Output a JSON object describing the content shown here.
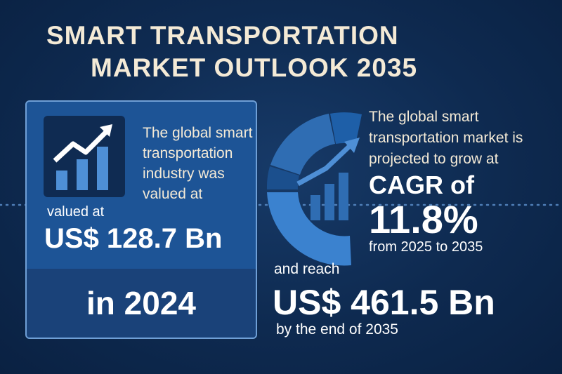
{
  "header": {
    "title_lines": [
      "SMART TRANSPORTATION",
      "MARKET OUTLOOK 2035"
    ]
  },
  "left_card": {
    "description": "The global smart transportation industry was valued at",
    "label": "valued at",
    "value": "US$ 128.7 Bn",
    "year": "in 2024"
  },
  "right_panel": {
    "description": "The global smart transportation market is projected to grow at",
    "cagr_label": "CAGR of",
    "cagr_value": "11.8%",
    "period": "from 2025 to 2035",
    "reach_label": "and reach",
    "reach_value": "US$ 461.5 Bn",
    "reach_note": "by the end of 2035"
  }
}
